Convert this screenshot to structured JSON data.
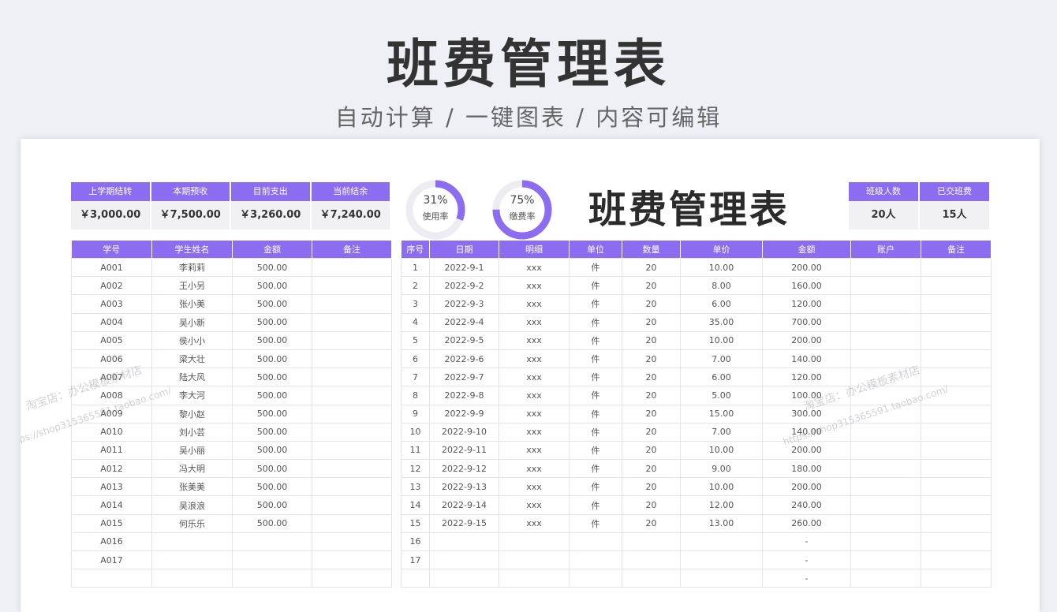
{
  "hero": {
    "title": "班费管理表",
    "subtitle": "自动计算 / 一键图表 / 内容可编辑"
  },
  "summary": {
    "headers": [
      "上学期结转",
      "本期预收",
      "目前支出",
      "当前结余"
    ],
    "values": [
      "￥3,000.00",
      "￥7,500.00",
      "￥3,260.00",
      "￥7,240.00"
    ]
  },
  "gauges": [
    {
      "percent": "31%",
      "label": "使用率",
      "value": 0.31
    },
    {
      "percent": "75%",
      "label": "缴费率",
      "value": 0.75
    }
  ],
  "sheet_title": "班费管理表",
  "headcount": {
    "headers": [
      "班级人数",
      "已交班费"
    ],
    "values": [
      "20人",
      "15人"
    ]
  },
  "students": {
    "columns": [
      "学号",
      "学生姓名",
      "金额",
      "备注"
    ],
    "rows": [
      [
        "A001",
        "李莉莉",
        "500.00",
        ""
      ],
      [
        "A002",
        "王小另",
        "500.00",
        ""
      ],
      [
        "A003",
        "张小美",
        "500.00",
        ""
      ],
      [
        "A004",
        "吴小新",
        "500.00",
        ""
      ],
      [
        "A005",
        "侯小小",
        "500.00",
        ""
      ],
      [
        "A006",
        "梁大壮",
        "500.00",
        ""
      ],
      [
        "A007",
        "陆大风",
        "500.00",
        ""
      ],
      [
        "A008",
        "李大河",
        "500.00",
        ""
      ],
      [
        "A009",
        "黎小赵",
        "500.00",
        ""
      ],
      [
        "A010",
        "刘小芸",
        "500.00",
        ""
      ],
      [
        "A011",
        "吴小丽",
        "500.00",
        ""
      ],
      [
        "A012",
        "冯大明",
        "500.00",
        ""
      ],
      [
        "A013",
        "张美美",
        "500.00",
        ""
      ],
      [
        "A014",
        "吴浪浪",
        "500.00",
        ""
      ],
      [
        "A015",
        "何乐乐",
        "500.00",
        ""
      ],
      [
        "A016",
        "",
        "",
        ""
      ],
      [
        "A017",
        "",
        "",
        ""
      ],
      [
        "",
        "",
        "",
        ""
      ]
    ]
  },
  "expenses": {
    "columns": [
      "序号",
      "日期",
      "明细",
      "单位",
      "数量",
      "单价",
      "金额",
      "账户",
      "备注"
    ],
    "rows": [
      [
        "1",
        "2022-9-1",
        "xxx",
        "件",
        "20",
        "10.00",
        "200.00",
        "",
        ""
      ],
      [
        "2",
        "2022-9-2",
        "xxx",
        "件",
        "20",
        "8.00",
        "160.00",
        "",
        ""
      ],
      [
        "3",
        "2022-9-3",
        "xxx",
        "件",
        "20",
        "6.00",
        "120.00",
        "",
        ""
      ],
      [
        "4",
        "2022-9-4",
        "xxx",
        "件",
        "20",
        "35.00",
        "700.00",
        "",
        ""
      ],
      [
        "5",
        "2022-9-5",
        "xxx",
        "件",
        "20",
        "10.00",
        "200.00",
        "",
        ""
      ],
      [
        "6",
        "2022-9-6",
        "xxx",
        "件",
        "20",
        "7.00",
        "140.00",
        "",
        ""
      ],
      [
        "7",
        "2022-9-7",
        "xxx",
        "件",
        "20",
        "6.00",
        "120.00",
        "",
        ""
      ],
      [
        "8",
        "2022-9-8",
        "xxx",
        "件",
        "20",
        "5.00",
        "100.00",
        "",
        ""
      ],
      [
        "9",
        "2022-9-9",
        "xxx",
        "件",
        "20",
        "15.00",
        "300.00",
        "",
        ""
      ],
      [
        "10",
        "2022-9-10",
        "xxx",
        "件",
        "20",
        "7.00",
        "140.00",
        "",
        ""
      ],
      [
        "11",
        "2022-9-11",
        "xxx",
        "件",
        "20",
        "10.00",
        "200.00",
        "",
        ""
      ],
      [
        "12",
        "2022-9-12",
        "xxx",
        "件",
        "20",
        "9.00",
        "180.00",
        "",
        ""
      ],
      [
        "13",
        "2022-9-13",
        "xxx",
        "件",
        "20",
        "10.00",
        "200.00",
        "",
        ""
      ],
      [
        "14",
        "2022-9-14",
        "xxx",
        "件",
        "20",
        "12.00",
        "240.00",
        "",
        ""
      ],
      [
        "15",
        "2022-9-15",
        "xxx",
        "件",
        "20",
        "13.00",
        "260.00",
        "",
        ""
      ],
      [
        "16",
        "",
        "",
        "",
        "",
        "",
        "-",
        "",
        ""
      ],
      [
        "17",
        "",
        "",
        "",
        "",
        "",
        "-",
        "",
        ""
      ],
      [
        "",
        "",
        "",
        "",
        "",
        "",
        "-",
        "",
        ""
      ]
    ]
  },
  "watermarks": [
    "淘宝店：办公模板素材店",
    "https://shop315365591.taobao.com/",
    "淘宝店：办公模板素材店",
    "https://shop315365591.taobao.com/"
  ],
  "colors": {
    "accent": "#8c6cf0",
    "track": "#ececf2"
  }
}
